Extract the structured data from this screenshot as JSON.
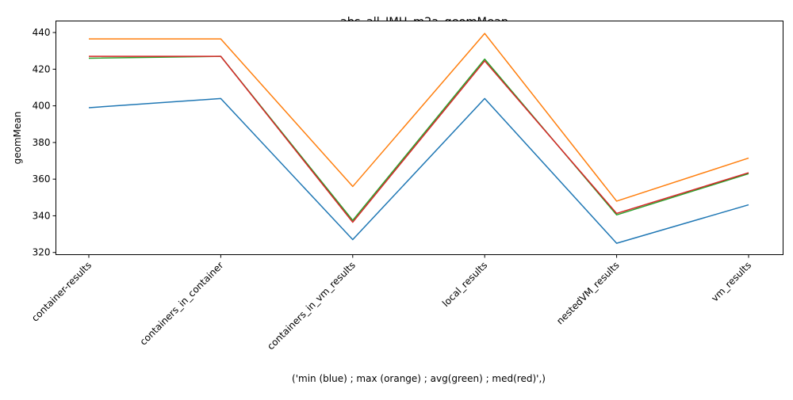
{
  "chart_data": {
    "type": "line",
    "title": "abs_all_JMH_m2a_geomMean",
    "xlabel": "('min (blue) ; max (orange) ; avg(green) ; med(red)',)",
    "ylabel": "geomMean",
    "categories": [
      "container-results",
      "containers_in_container",
      "containers_in_vm_results",
      "local_results",
      "nestedVM_results",
      "vm_results"
    ],
    "y_ticks": [
      320,
      340,
      360,
      380,
      400,
      420,
      440
    ],
    "ylim": [
      318.8,
      446.3
    ],
    "grid": false,
    "legend": "none",
    "series": [
      {
        "color": "#1f77b4",
        "values": [
          399,
          404,
          327,
          404,
          325,
          346
        ]
      },
      {
        "color": "#ff7f0e",
        "values": [
          436.5,
          436.5,
          356,
          439.5,
          348,
          371.5
        ]
      },
      {
        "color": "#2ca02c",
        "values": [
          426,
          427,
          337.5,
          425.5,
          340.5,
          363
        ]
      },
      {
        "color": "#d62728",
        "values": [
          427,
          427,
          336.5,
          424.5,
          341.3,
          363.5
        ]
      }
    ]
  }
}
